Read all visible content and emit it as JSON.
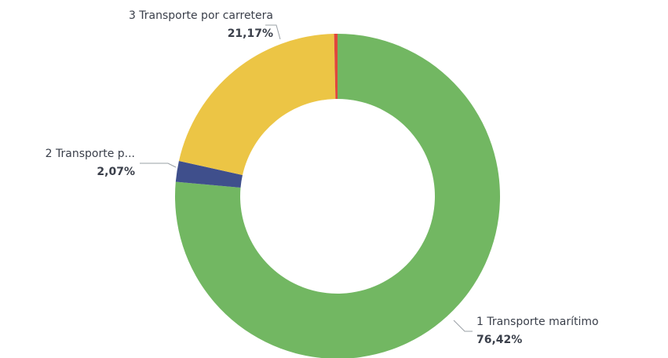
{
  "chart_data": {
    "type": "donut",
    "categories": [
      "1 Transporte marítimo",
      "2 Transporte p...",
      "3 Transporte por carretera",
      null
    ],
    "values": [
      76.42,
      2.07,
      21.17,
      0.34
    ],
    "value_labels": [
      "76,42%",
      "2,07%",
      "21,17%",
      null
    ],
    "colors": [
      "#72b762",
      "#3f4f8c",
      "#ecc545",
      "#e0473c"
    ]
  }
}
